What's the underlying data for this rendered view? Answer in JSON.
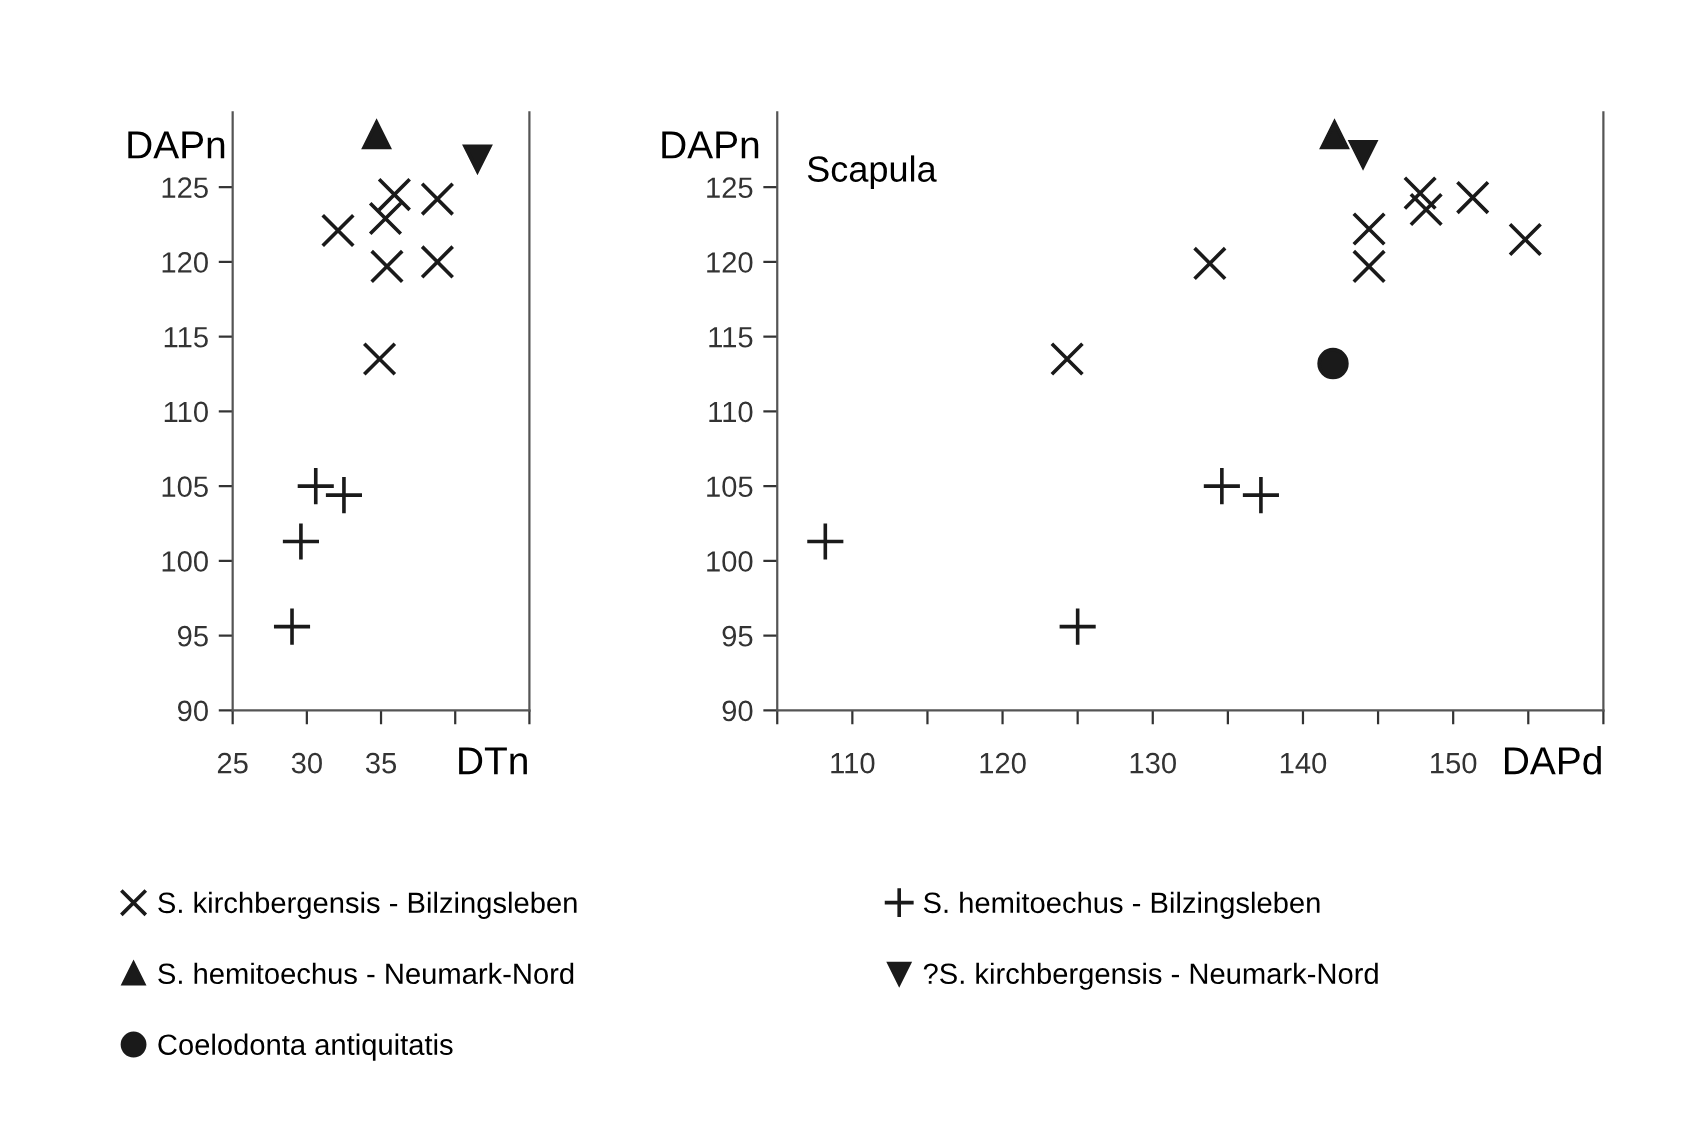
{
  "chart_data": [
    {
      "type": "scatter",
      "xlabel": "DTn",
      "ylabel": "DAPn",
      "xlim": [
        25,
        45
      ],
      "xticks": [
        25,
        30,
        35,
        {
          "value": 40,
          "label": null
        },
        {
          "value": 45,
          "label": null
        }
      ],
      "ylim": [
        90,
        130
      ],
      "yticks": [
        90,
        95,
        100,
        105,
        110,
        115,
        120,
        125
      ],
      "grid": false,
      "legend": "bottom",
      "series": [
        {
          "name": "S. kirchbergensis - Bilzingsleben",
          "marker": "cross",
          "color": "#1a1a1a",
          "x": [
            32.1,
            35.9,
            35.3,
            35.4,
            38.8,
            38.8,
            34.9
          ],
          "values": [
            122.1,
            124.5,
            122.9,
            119.7,
            124.2,
            120.0,
            113.5
          ]
        },
        {
          "name": "S. hemitoechus - Neumark-Nord",
          "marker": "triangle",
          "color": "#1a1a1a",
          "x": [
            34.7
          ],
          "values": [
            128.5
          ]
        },
        {
          "name": "S. hemitoechus - Bilzingsleben",
          "marker": "plus",
          "color": "#1a1a1a",
          "x": [
            30.6,
            32.5,
            29.6,
            29.0
          ],
          "values": [
            105.0,
            104.4,
            101.3,
            95.6
          ]
        },
        {
          "name": "?S. kirchbergensis - Neumark-Nord",
          "marker": "triangle_down",
          "color": "#1a1a1a",
          "x": [
            41.5
          ],
          "values": [
            126.9
          ]
        }
      ]
    },
    {
      "type": "scatter",
      "xlabel": "DAPd",
      "ylabel": "DAPn",
      "annotations": [
        "Scapula"
      ],
      "xlim": [
        105,
        160
      ],
      "xticks": [
        {
          "value": 105,
          "label": null
        },
        110,
        {
          "value": 115,
          "label": null
        },
        120,
        {
          "value": 125,
          "label": null
        },
        130,
        {
          "value": 135,
          "label": null
        },
        140,
        {
          "value": 145,
          "label": null
        },
        150,
        {
          "value": 155,
          "label": null
        },
        {
          "value": 160,
          "label": null
        }
      ],
      "ylim": [
        90,
        130
      ],
      "yticks": [
        90,
        95,
        100,
        105,
        110,
        115,
        120,
        125
      ],
      "grid": false,
      "legend": "bottom",
      "series": [
        {
          "name": "S. kirchbergensis - Bilzingsleben",
          "marker": "cross",
          "color": "#1a1a1a",
          "x": [
            124.3,
            133.8,
            144.4,
            144.4,
            147.8,
            148.2,
            151.3,
            154.8
          ],
          "values": [
            113.5,
            119.9,
            122.2,
            119.7,
            124.6,
            123.5,
            124.3,
            121.5
          ]
        },
        {
          "name": "S. hemitoechus - Neumark-Nord",
          "marker": "triangle",
          "color": "#1a1a1a",
          "x": [
            142.1
          ],
          "values": [
            128.5
          ]
        },
        {
          "name": "Coelodonta antiquitatis",
          "marker": "circle",
          "color": "#1a1a1a",
          "x": [
            142.0
          ],
          "values": [
            113.2
          ]
        },
        {
          "name": "S. hemitoechus - Bilzingsleben",
          "marker": "plus",
          "color": "#1a1a1a",
          "x": [
            108.2,
            125.0,
            134.6,
            137.2
          ],
          "values": [
            101.3,
            95.6,
            105.0,
            104.4
          ]
        },
        {
          "name": "?S. kirchbergensis - Neumark-Nord",
          "marker": "triangle_down",
          "color": "#1a1a1a",
          "x": [
            144.0
          ],
          "values": [
            127.2
          ]
        }
      ]
    }
  ]
}
